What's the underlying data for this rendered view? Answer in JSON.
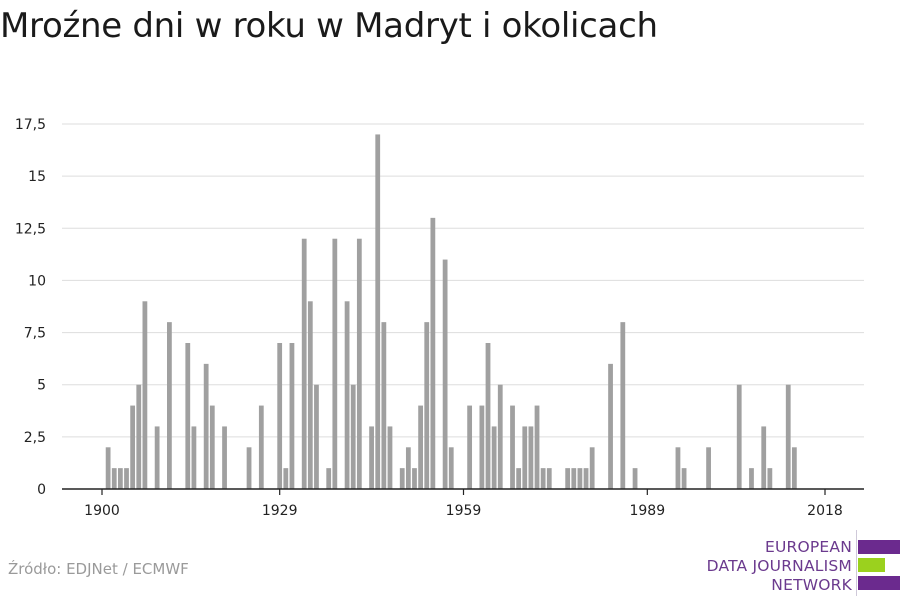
{
  "title": "Mroźne dni w roku w Madryt i okolicach",
  "source": "Źródło: EDJNet / ECMWF",
  "logo": {
    "lines": [
      "EUROPEAN",
      "DATA JOURNALISM",
      "NETWORK"
    ],
    "bar_colors": [
      "#6b2a8e",
      "#9bd11e",
      "#6b2a8e"
    ]
  },
  "colors": {
    "bar": "#a0a0a0",
    "grid": "#dddddd",
    "axis": "#222222",
    "text": "#222222"
  },
  "chart_data": {
    "type": "bar",
    "title": "Mroźne dni w roku w Madryt i okolicach",
    "xlabel": "",
    "ylabel": "",
    "x_ticks": [
      1900,
      1929,
      1959,
      1989,
      2018
    ],
    "y_ticks": [
      "0",
      "2,5",
      "5",
      "7,5",
      "10",
      "12,5",
      "15",
      "17,5"
    ],
    "ylim": [
      0,
      17.5
    ],
    "xlim": [
      1900,
      2020
    ],
    "grid": true,
    "x": [
      1900,
      1901,
      1902,
      1903,
      1904,
      1905,
      1906,
      1907,
      1908,
      1909,
      1910,
      1911,
      1912,
      1913,
      1914,
      1915,
      1916,
      1917,
      1918,
      1919,
      1920,
      1921,
      1922,
      1923,
      1924,
      1925,
      1926,
      1927,
      1928,
      1929,
      1930,
      1931,
      1932,
      1933,
      1934,
      1935,
      1936,
      1937,
      1938,
      1939,
      1940,
      1941,
      1942,
      1943,
      1944,
      1945,
      1946,
      1947,
      1948,
      1949,
      1950,
      1951,
      1952,
      1953,
      1954,
      1955,
      1956,
      1957,
      1958,
      1959,
      1960,
      1961,
      1962,
      1963,
      1964,
      1965,
      1966,
      1967,
      1968,
      1969,
      1970,
      1971,
      1972,
      1973,
      1974,
      1975,
      1976,
      1977,
      1978,
      1979,
      1980,
      1981,
      1982,
      1983,
      1984,
      1985,
      1986,
      1987,
      1988,
      1989,
      1990,
      1991,
      1992,
      1993,
      1994,
      1995,
      1996,
      1997,
      1998,
      1999,
      2000,
      2001,
      2002,
      2003,
      2004,
      2005,
      2006,
      2007,
      2008,
      2009,
      2010,
      2011,
      2012,
      2013,
      2014,
      2015,
      2016,
      2017,
      2018
    ],
    "values": [
      0,
      2,
      1,
      1,
      1,
      4,
      5,
      9,
      0,
      3,
      0,
      8,
      0,
      0,
      7,
      3,
      0,
      6,
      4,
      0,
      3,
      0,
      0,
      0,
      2,
      0,
      4,
      0,
      0,
      7,
      1,
      7,
      0,
      12,
      9,
      5,
      0,
      1,
      12,
      0,
      9,
      5,
      12,
      0,
      3,
      17,
      8,
      3,
      0,
      1,
      2,
      1,
      4,
      8,
      13,
      0,
      11,
      2,
      0,
      0,
      4,
      0,
      4,
      7,
      3,
      5,
      0,
      4,
      1,
      3,
      3,
      4,
      1,
      1,
      0,
      0,
      1,
      1,
      1,
      1,
      2,
      0,
      0,
      6,
      0,
      8,
      0,
      1,
      0,
      0,
      0,
      0,
      0,
      0,
      2,
      1,
      0,
      0,
      0,
      2,
      0,
      0,
      0,
      0,
      5,
      0,
      1,
      0,
      3,
      1,
      0,
      0,
      5,
      2,
      0,
      0,
      0,
      0,
      0
    ]
  }
}
